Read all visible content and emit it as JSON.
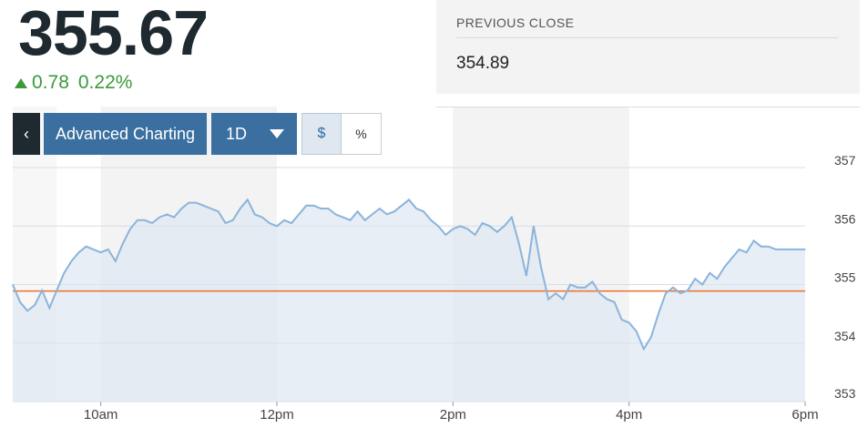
{
  "quote": {
    "price": "355.67",
    "change": "0.78",
    "change_percent": "0.22%",
    "direction": "up",
    "up_color": "#3b9a3b"
  },
  "previous_close": {
    "label": "PREVIOUS CLOSE",
    "value": "354.89"
  },
  "toolbar": {
    "back_icon": "chevron-left-icon",
    "advanced_label": "Advanced Charting",
    "range_label": "1D",
    "range_icon": "caret-down-icon",
    "dollar_label": "$",
    "percent_label": "%",
    "selected_mode": "$"
  },
  "chart_data": {
    "type": "area",
    "xlabel": "",
    "ylabel": "",
    "x_ticks": [
      "10am",
      "12pm",
      "2pm",
      "4pm",
      "6pm"
    ],
    "y_ticks": [
      "357",
      "356",
      "355",
      "354",
      "353"
    ],
    "ylim": [
      353,
      357
    ],
    "xlim": [
      "9:00",
      "18:00"
    ],
    "y_axis_side": "right",
    "grid": "horizontal",
    "reference_line": {
      "value": 354.89,
      "color": "#e8702a"
    },
    "line_color": "#8ab4dc",
    "fill_color": "#dde7f1",
    "market_hours": {
      "open": "9:30",
      "close": "16:00"
    },
    "shaded_periods": [
      [
        "10:00",
        "12:00"
      ],
      [
        "14:00",
        "16:00"
      ]
    ],
    "series": [
      {
        "values": [
          [
            "9:00",
            355.0
          ],
          [
            "9:05",
            354.7
          ],
          [
            "9:10",
            354.55
          ],
          [
            "9:15",
            354.65
          ],
          [
            "9:20",
            354.9
          ],
          [
            "9:25",
            354.6
          ],
          [
            "9:30",
            354.9
          ],
          [
            "9:35",
            355.2
          ],
          [
            "9:40",
            355.4
          ],
          [
            "9:45",
            355.55
          ],
          [
            "9:50",
            355.65
          ],
          [
            "9:55",
            355.6
          ],
          [
            "10:00",
            355.55
          ],
          [
            "10:05",
            355.6
          ],
          [
            "10:10",
            355.4
          ],
          [
            "10:15",
            355.7
          ],
          [
            "10:20",
            355.95
          ],
          [
            "10:25",
            356.1
          ],
          [
            "10:30",
            356.1
          ],
          [
            "10:35",
            356.05
          ],
          [
            "10:40",
            356.15
          ],
          [
            "10:45",
            356.2
          ],
          [
            "10:50",
            356.15
          ],
          [
            "10:55",
            356.3
          ],
          [
            "11:00",
            356.4
          ],
          [
            "11:05",
            356.4
          ],
          [
            "11:10",
            356.35
          ],
          [
            "11:15",
            356.3
          ],
          [
            "11:20",
            356.25
          ],
          [
            "11:25",
            356.05
          ],
          [
            "11:30",
            356.1
          ],
          [
            "11:35",
            356.3
          ],
          [
            "11:40",
            356.45
          ],
          [
            "11:45",
            356.2
          ],
          [
            "11:50",
            356.15
          ],
          [
            "11:55",
            356.05
          ],
          [
            "12:00",
            356.0
          ],
          [
            "12:05",
            356.1
          ],
          [
            "12:10",
            356.05
          ],
          [
            "12:15",
            356.2
          ],
          [
            "12:20",
            356.35
          ],
          [
            "12:25",
            356.35
          ],
          [
            "12:30",
            356.3
          ],
          [
            "12:35",
            356.3
          ],
          [
            "12:40",
            356.2
          ],
          [
            "12:45",
            356.15
          ],
          [
            "12:50",
            356.1
          ],
          [
            "12:55",
            356.25
          ],
          [
            "13:00",
            356.1
          ],
          [
            "13:05",
            356.2
          ],
          [
            "13:10",
            356.3
          ],
          [
            "13:15",
            356.2
          ],
          [
            "13:20",
            356.25
          ],
          [
            "13:25",
            356.35
          ],
          [
            "13:30",
            356.45
          ],
          [
            "13:35",
            356.3
          ],
          [
            "13:40",
            356.25
          ],
          [
            "13:45",
            356.1
          ],
          [
            "13:50",
            356.0
          ],
          [
            "13:55",
            355.85
          ],
          [
            "14:00",
            355.95
          ],
          [
            "14:05",
            356.0
          ],
          [
            "14:10",
            355.95
          ],
          [
            "14:15",
            355.85
          ],
          [
            "14:20",
            356.05
          ],
          [
            "14:25",
            356.0
          ],
          [
            "14:30",
            355.9
          ],
          [
            "14:35",
            356.0
          ],
          [
            "14:40",
            356.15
          ],
          [
            "14:45",
            355.7
          ],
          [
            "14:50",
            355.15
          ],
          [
            "14:55",
            356.0
          ],
          [
            "15:00",
            355.3
          ],
          [
            "15:05",
            354.75
          ],
          [
            "15:10",
            354.85
          ],
          [
            "15:15",
            354.75
          ],
          [
            "15:20",
            355.0
          ],
          [
            "15:25",
            354.95
          ],
          [
            "15:30",
            354.95
          ],
          [
            "15:35",
            355.05
          ],
          [
            "15:40",
            354.85
          ],
          [
            "15:45",
            354.75
          ],
          [
            "15:50",
            354.7
          ],
          [
            "15:55",
            354.4
          ],
          [
            "16:00",
            354.35
          ],
          [
            "16:05",
            354.2
          ],
          [
            "16:10",
            353.9
          ],
          [
            "16:15",
            354.1
          ],
          [
            "16:20",
            354.5
          ],
          [
            "16:25",
            354.85
          ],
          [
            "16:30",
            354.95
          ],
          [
            "16:35",
            354.85
          ],
          [
            "16:40",
            354.9
          ],
          [
            "16:45",
            355.1
          ],
          [
            "16:50",
            355.0
          ],
          [
            "16:55",
            355.2
          ],
          [
            "17:00",
            355.1
          ],
          [
            "17:05",
            355.3
          ],
          [
            "17:10",
            355.45
          ],
          [
            "17:15",
            355.6
          ],
          [
            "17:20",
            355.55
          ],
          [
            "17:25",
            355.75
          ],
          [
            "17:30",
            355.65
          ],
          [
            "17:35",
            355.65
          ],
          [
            "17:40",
            355.6
          ],
          [
            "17:45",
            355.6
          ],
          [
            "17:50",
            355.6
          ],
          [
            "17:55",
            355.6
          ],
          [
            "18:00",
            355.6
          ]
        ]
      }
    ]
  }
}
